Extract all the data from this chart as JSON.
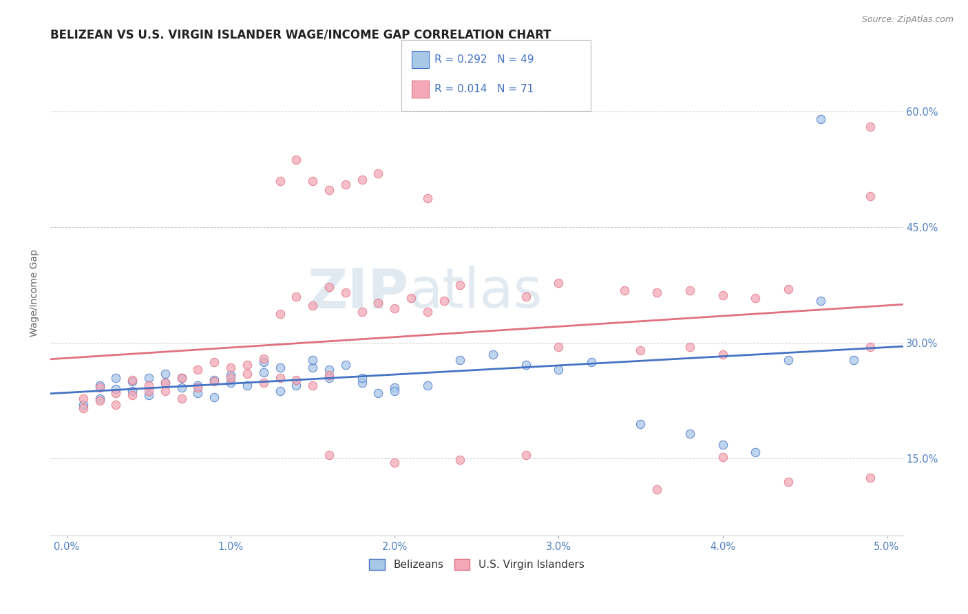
{
  "title": "BELIZEAN VS U.S. VIRGIN ISLANDER WAGE/INCOME GAP CORRELATION CHART",
  "source": "Source: ZipAtlas.com",
  "ylabel": "Wage/Income Gap",
  "ytick_labels": [
    "15.0%",
    "30.0%",
    "45.0%",
    "60.0%"
  ],
  "ytick_values": [
    0.15,
    0.3,
    0.45,
    0.6
  ],
  "color_blue": "#a8c8e8",
  "color_pink": "#f4a8b8",
  "line_blue": "#4472c4",
  "line_pink": "#e07080",
  "blue_scatter": [
    [
      0.001,
      0.22
    ],
    [
      0.002,
      0.245
    ],
    [
      0.003,
      0.24
    ],
    [
      0.004,
      0.25
    ],
    [
      0.005,
      0.255
    ],
    [
      0.006,
      0.248
    ],
    [
      0.007,
      0.242
    ],
    [
      0.008,
      0.235
    ],
    [
      0.009,
      0.252
    ],
    [
      0.01,
      0.258
    ],
    [
      0.011,
      0.245
    ],
    [
      0.012,
      0.262
    ],
    [
      0.013,
      0.238
    ],
    [
      0.014,
      0.245
    ],
    [
      0.015,
      0.268
    ],
    [
      0.016,
      0.255
    ],
    [
      0.017,
      0.272
    ],
    [
      0.018,
      0.248
    ],
    [
      0.019,
      0.235
    ],
    [
      0.02,
      0.242
    ],
    [
      0.002,
      0.228
    ],
    [
      0.003,
      0.255
    ],
    [
      0.004,
      0.238
    ],
    [
      0.005,
      0.232
    ],
    [
      0.006,
      0.26
    ],
    [
      0.007,
      0.255
    ],
    [
      0.008,
      0.245
    ],
    [
      0.009,
      0.23
    ],
    [
      0.01,
      0.248
    ],
    [
      0.012,
      0.275
    ],
    [
      0.013,
      0.268
    ],
    [
      0.015,
      0.278
    ],
    [
      0.016,
      0.265
    ],
    [
      0.018,
      0.255
    ],
    [
      0.02,
      0.238
    ],
    [
      0.022,
      0.245
    ],
    [
      0.024,
      0.278
    ],
    [
      0.026,
      0.285
    ],
    [
      0.028,
      0.272
    ],
    [
      0.03,
      0.265
    ],
    [
      0.032,
      0.275
    ],
    [
      0.035,
      0.195
    ],
    [
      0.038,
      0.182
    ],
    [
      0.04,
      0.168
    ],
    [
      0.042,
      0.158
    ],
    [
      0.044,
      0.278
    ],
    [
      0.046,
      0.355
    ],
    [
      0.048,
      0.278
    ],
    [
      0.046,
      0.59
    ]
  ],
  "pink_scatter": [
    [
      0.001,
      0.228
    ],
    [
      0.002,
      0.242
    ],
    [
      0.003,
      0.235
    ],
    [
      0.004,
      0.252
    ],
    [
      0.005,
      0.238
    ],
    [
      0.006,
      0.248
    ],
    [
      0.007,
      0.255
    ],
    [
      0.008,
      0.242
    ],
    [
      0.009,
      0.25
    ],
    [
      0.01,
      0.255
    ],
    [
      0.011,
      0.26
    ],
    [
      0.012,
      0.248
    ],
    [
      0.013,
      0.255
    ],
    [
      0.014,
      0.252
    ],
    [
      0.015,
      0.245
    ],
    [
      0.016,
      0.258
    ],
    [
      0.001,
      0.215
    ],
    [
      0.002,
      0.225
    ],
    [
      0.003,
      0.22
    ],
    [
      0.004,
      0.232
    ],
    [
      0.005,
      0.245
    ],
    [
      0.006,
      0.238
    ],
    [
      0.007,
      0.228
    ],
    [
      0.008,
      0.265
    ],
    [
      0.009,
      0.275
    ],
    [
      0.01,
      0.268
    ],
    [
      0.011,
      0.272
    ],
    [
      0.012,
      0.28
    ],
    [
      0.013,
      0.338
    ],
    [
      0.014,
      0.36
    ],
    [
      0.015,
      0.348
    ],
    [
      0.016,
      0.372
    ],
    [
      0.017,
      0.365
    ],
    [
      0.018,
      0.34
    ],
    [
      0.019,
      0.352
    ],
    [
      0.02,
      0.345
    ],
    [
      0.021,
      0.358
    ],
    [
      0.022,
      0.34
    ],
    [
      0.023,
      0.355
    ],
    [
      0.013,
      0.51
    ],
    [
      0.014,
      0.538
    ],
    [
      0.015,
      0.51
    ],
    [
      0.016,
      0.498
    ],
    [
      0.017,
      0.505
    ],
    [
      0.018,
      0.512
    ],
    [
      0.019,
      0.52
    ],
    [
      0.022,
      0.488
    ],
    [
      0.024,
      0.375
    ],
    [
      0.028,
      0.36
    ],
    [
      0.03,
      0.378
    ],
    [
      0.034,
      0.368
    ],
    [
      0.036,
      0.365
    ],
    [
      0.038,
      0.368
    ],
    [
      0.04,
      0.362
    ],
    [
      0.042,
      0.358
    ],
    [
      0.044,
      0.37
    ],
    [
      0.03,
      0.295
    ],
    [
      0.035,
      0.29
    ],
    [
      0.038,
      0.295
    ],
    [
      0.04,
      0.285
    ],
    [
      0.016,
      0.155
    ],
    [
      0.02,
      0.145
    ],
    [
      0.024,
      0.148
    ],
    [
      0.028,
      0.155
    ],
    [
      0.036,
      0.11
    ],
    [
      0.04,
      0.152
    ],
    [
      0.044,
      0.12
    ],
    [
      0.049,
      0.125
    ],
    [
      0.049,
      0.295
    ],
    [
      0.049,
      0.58
    ],
    [
      0.049,
      0.49
    ]
  ],
  "xlim": [
    -0.001,
    0.051
  ],
  "ylim": [
    0.05,
    0.68
  ],
  "title_fontsize": 12,
  "axis_label_fontsize": 10,
  "tick_fontsize": 10.5
}
